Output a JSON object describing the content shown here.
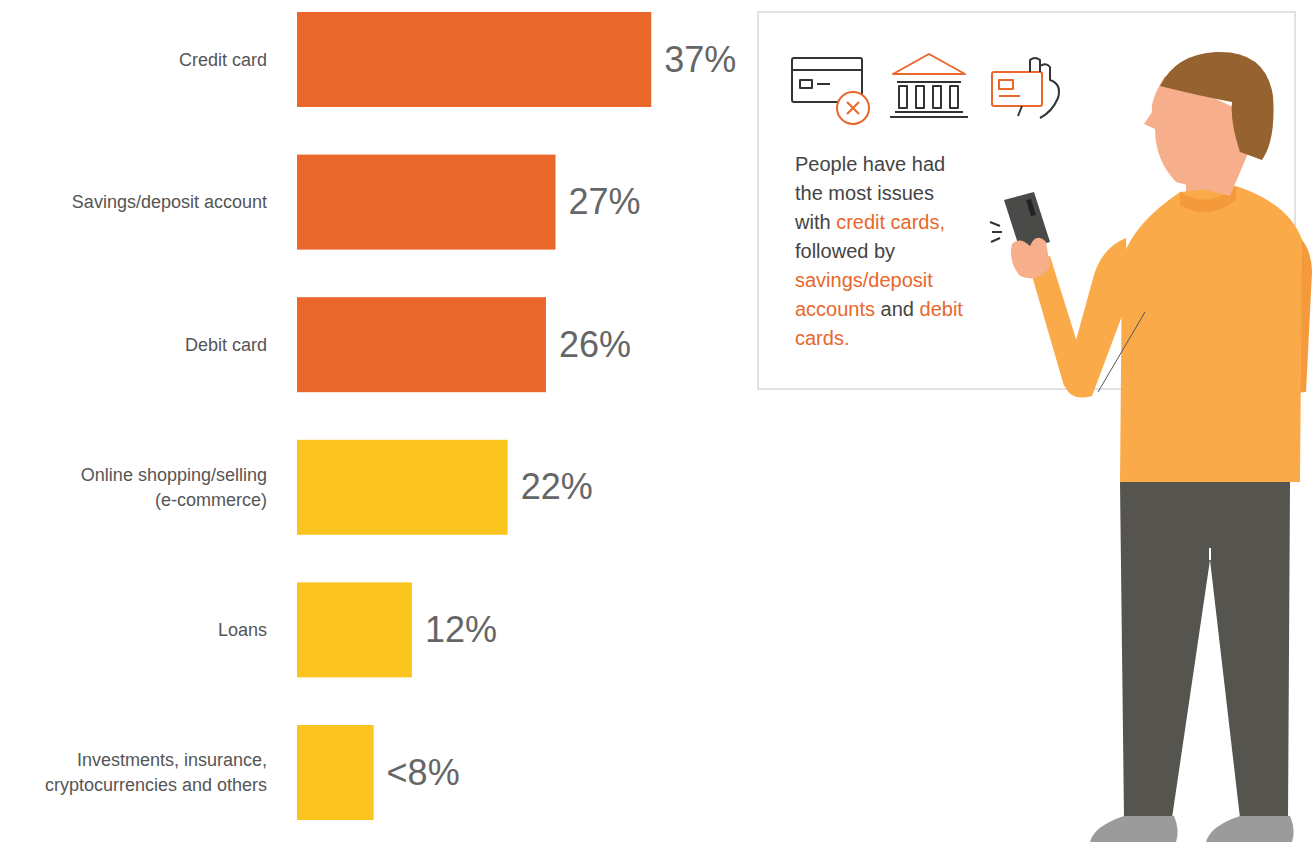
{
  "chart_data": {
    "type": "bar",
    "orientation": "horizontal",
    "categories": [
      "Credit card",
      "Savings/deposit account",
      "Debit card",
      "Online shopping/selling (e-commerce)",
      "Loans",
      "Investments, insurance, cryptocurrencies and others"
    ],
    "values": [
      37,
      27,
      26,
      22,
      12,
      8
    ],
    "value_labels": [
      "37%",
      "27%",
      "26%",
      "22%",
      "12%",
      "<8%"
    ],
    "colors": [
      "#e9672a",
      "#e9672a",
      "#e9672a",
      "#fbc41f",
      "#fbc41f",
      "#fbc41f"
    ],
    "xlim": [
      0,
      40
    ],
    "data_labels": true,
    "tick_labels": "y",
    "grid": false,
    "annotations": [
      {
        "segments": [
          {
            "text": "People have had the most issues with ",
            "color": "#444444"
          },
          {
            "text": "credit cards,",
            "color": "#e9672a"
          },
          {
            "text": " followed by ",
            "color": "#444444"
          },
          {
            "text": "savings/deposit accounts",
            "color": "#e9672a"
          },
          {
            "text": " and ",
            "color": "#444444"
          },
          {
            "text": "debit cards.",
            "color": "#e9672a"
          }
        ]
      }
    ]
  }
}
